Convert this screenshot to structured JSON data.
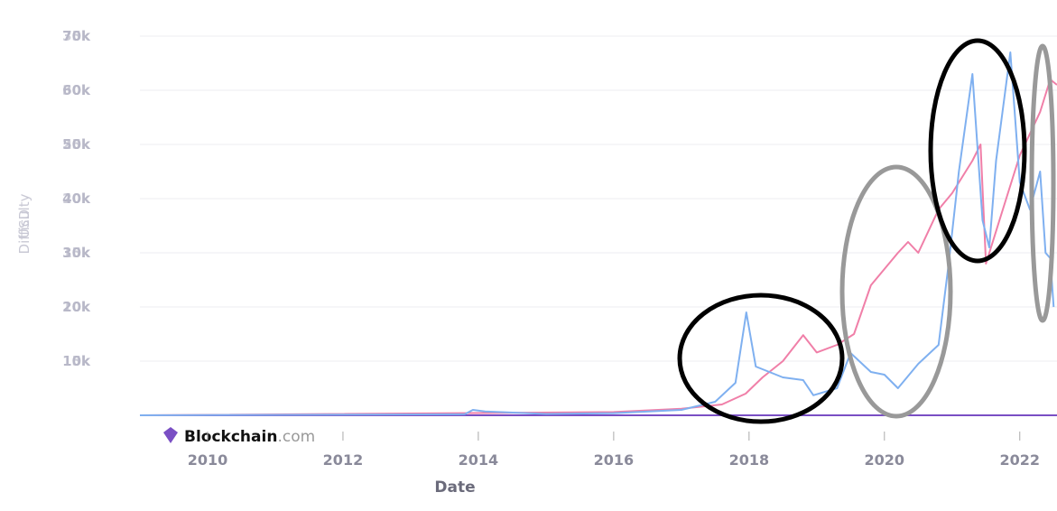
{
  "chart_data": {
    "type": "line",
    "x_label": "Date",
    "y_label": "USD",
    "y2_label": "Difficulty",
    "brand": "Blockchain",
    "brand_suffix": ".com",
    "xlim": [
      2009,
      2022.55
    ],
    "xticks": [
      2010,
      2012,
      2014,
      2016,
      2018,
      2020,
      2022
    ],
    "ylim": [
      0,
      70000
    ],
    "yticks": [
      {
        "value": 10000,
        "label": "10k"
      },
      {
        "value": 20000,
        "label": "20k"
      },
      {
        "value": 30000,
        "label": "30k"
      },
      {
        "value": 40000,
        "label": "40k"
      },
      {
        "value": 50000,
        "label": "50k"
      },
      {
        "value": 60000,
        "label": "60k"
      },
      {
        "value": 70000,
        "label": "70k"
      }
    ],
    "y2lim": [
      0,
      35000
    ],
    "y2ticks": [
      {
        "value": 5000,
        "label": "5k"
      },
      {
        "value": 10000,
        "label": "10k"
      },
      {
        "value": 15000,
        "label": "15k"
      },
      {
        "value": 20000,
        "label": "20k"
      },
      {
        "value": 25000,
        "label": "25k"
      },
      {
        "value": 30000,
        "label": "30k"
      },
      {
        "value": 35000,
        "label": "35k"
      }
    ],
    "grid": true,
    "series": [
      {
        "name": "USD",
        "color": "#7fb0f0",
        "x": [
          2009.0,
          2013.8,
          2013.92,
          2014.1,
          2015.0,
          2016.0,
          2017.0,
          2017.5,
          2017.8,
          2017.96,
          2018.1,
          2018.3,
          2018.5,
          2018.8,
          2018.95,
          2019.3,
          2019.5,
          2019.8,
          2020.0,
          2020.2,
          2020.5,
          2020.8,
          2020.95,
          2021.1,
          2021.3,
          2021.45,
          2021.55,
          2021.65,
          2021.86,
          2022.0,
          2022.15,
          2022.3,
          2022.38,
          2022.45,
          2022.5
        ],
        "values": [
          0,
          200,
          1000,
          700,
          250,
          400,
          1000,
          2500,
          6000,
          19000,
          9000,
          8000,
          7000,
          6500,
          3700,
          5000,
          11500,
          8000,
          7500,
          5000,
          9500,
          13000,
          28000,
          45000,
          63000,
          36000,
          31000,
          47000,
          67000,
          43000,
          38000,
          45000,
          30000,
          29000,
          20000
        ]
      },
      {
        "name": "Difficulty",
        "color": "#f07fa8",
        "axis": "y2",
        "x": [
          2009.0,
          2016.0,
          2017.0,
          2017.6,
          2017.95,
          2018.2,
          2018.5,
          2018.8,
          2019.0,
          2019.3,
          2019.55,
          2019.8,
          2020.2,
          2020.35,
          2020.5,
          2020.8,
          2021.0,
          2021.3,
          2021.42,
          2021.5,
          2021.75,
          2022.0,
          2022.3,
          2022.45,
          2022.55
        ],
        "values": [
          0,
          300,
          600,
          1000,
          2000,
          3500,
          5000,
          7400,
          5800,
          6500,
          7500,
          12000,
          15000,
          16000,
          15000,
          19000,
          20500,
          23500,
          25000,
          14000,
          19000,
          24000,
          28000,
          31000,
          30500
        ]
      }
    ]
  }
}
